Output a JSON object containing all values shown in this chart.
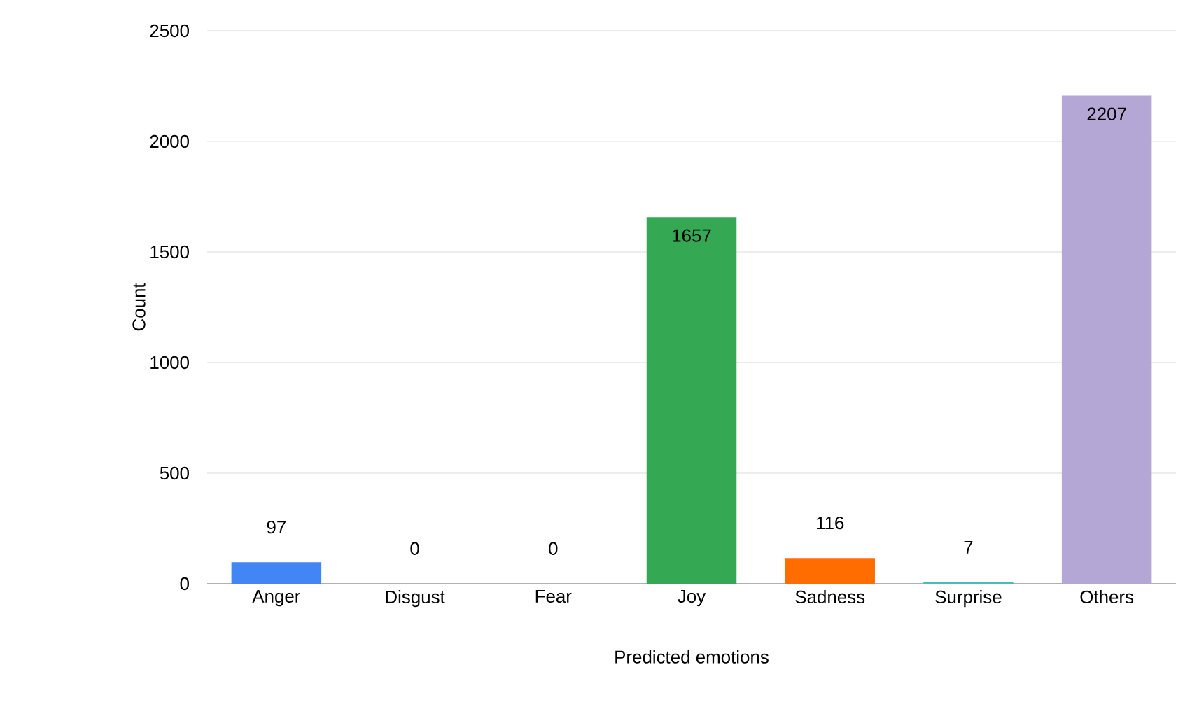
{
  "chart_data": {
    "type": "bar",
    "xlabel": "Predicted emotions",
    "ylabel": "Count",
    "categories": [
      "Anger",
      "Disgust",
      "Fear",
      "Joy",
      "Sadness",
      "Surprise",
      "Others"
    ],
    "values": [
      97,
      0,
      0,
      1657,
      116,
      7,
      2207
    ],
    "colors": [
      "#4285f4",
      "#ea4335",
      "#fbbc04",
      "#34a853",
      "#ff6d01",
      "#46bdc6",
      "#b4a7d6"
    ],
    "ylim": [
      0,
      2500
    ],
    "yticks": [
      0,
      500,
      1000,
      1500,
      2000,
      2500
    ],
    "grid": "y",
    "data_labels": true
  }
}
